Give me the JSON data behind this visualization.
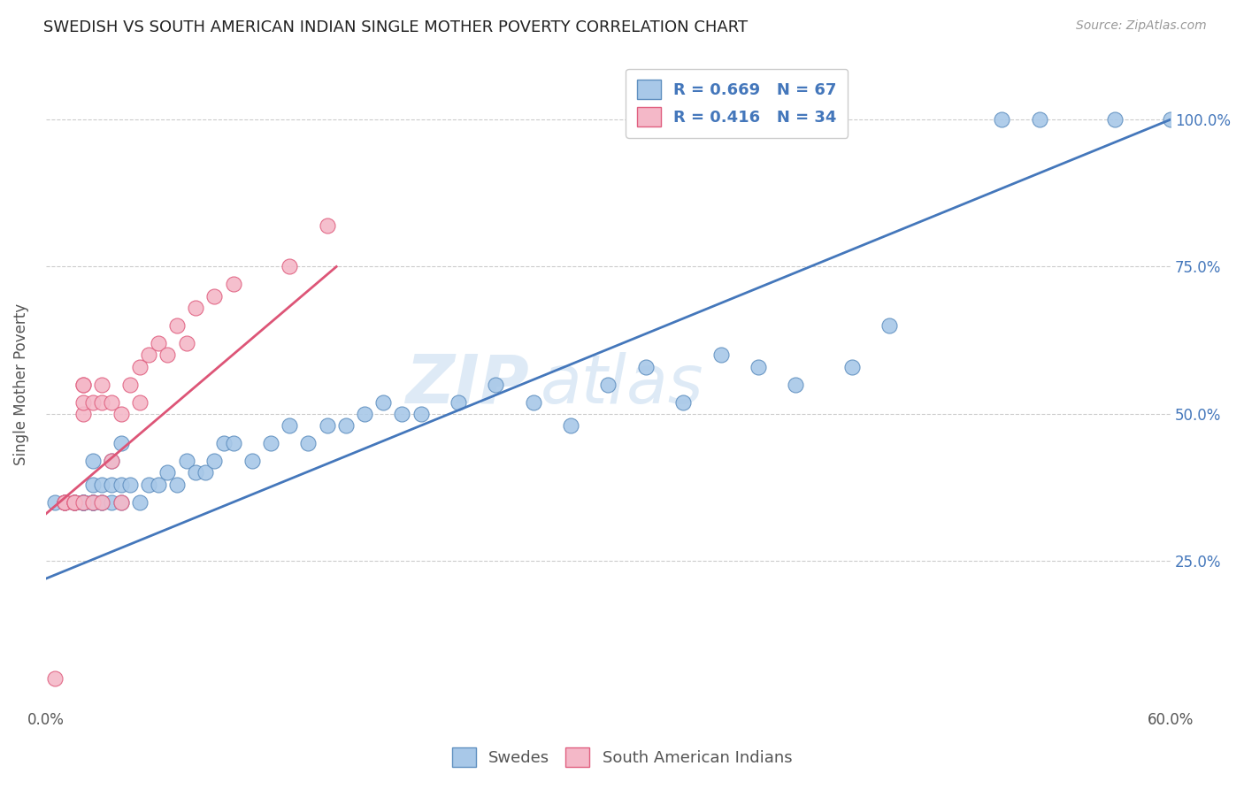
{
  "title": "SWEDISH VS SOUTH AMERICAN INDIAN SINGLE MOTHER POVERTY CORRELATION CHART",
  "source": "Source: ZipAtlas.com",
  "xlabel_ticks": [
    "0.0%",
    "",
    "",
    "",
    "",
    "",
    "60.0%"
  ],
  "ylabel_ticks": [
    "25.0%",
    "50.0%",
    "75.0%",
    "100.0%"
  ],
  "ylabel": "Single Mother Poverty",
  "xlim": [
    0.0,
    0.6
  ],
  "ylim": [
    0.0,
    1.1
  ],
  "ytick_vals": [
    0.25,
    0.5,
    0.75,
    1.0
  ],
  "blue_R": 0.669,
  "blue_N": 67,
  "pink_R": 0.416,
  "pink_N": 34,
  "blue_color": "#a8c8e8",
  "pink_color": "#f4b8c8",
  "blue_edge_color": "#6090c0",
  "pink_edge_color": "#e06080",
  "blue_line_color": "#4477bb",
  "pink_line_color": "#dd5577",
  "legend_text_color": "#4477bb",
  "watermark_zip": "ZIP",
  "watermark_atlas": "atlas",
  "blue_scatter_x": [
    0.005,
    0.01,
    0.01,
    0.015,
    0.015,
    0.015,
    0.02,
    0.02,
    0.02,
    0.02,
    0.02,
    0.02,
    0.02,
    0.025,
    0.025,
    0.025,
    0.025,
    0.025,
    0.025,
    0.025,
    0.03,
    0.03,
    0.03,
    0.035,
    0.035,
    0.035,
    0.04,
    0.04,
    0.04,
    0.045,
    0.05,
    0.055,
    0.06,
    0.065,
    0.07,
    0.075,
    0.08,
    0.085,
    0.09,
    0.095,
    0.1,
    0.11,
    0.12,
    0.13,
    0.14,
    0.15,
    0.16,
    0.17,
    0.18,
    0.19,
    0.2,
    0.22,
    0.24,
    0.26,
    0.28,
    0.3,
    0.32,
    0.34,
    0.36,
    0.38,
    0.4,
    0.43,
    0.45,
    0.51,
    0.53,
    0.57,
    0.6
  ],
  "blue_scatter_y": [
    0.35,
    0.35,
    0.35,
    0.35,
    0.35,
    0.35,
    0.35,
    0.35,
    0.35,
    0.35,
    0.35,
    0.35,
    0.35,
    0.35,
    0.35,
    0.35,
    0.35,
    0.35,
    0.38,
    0.42,
    0.35,
    0.35,
    0.38,
    0.35,
    0.38,
    0.42,
    0.35,
    0.38,
    0.45,
    0.38,
    0.35,
    0.38,
    0.38,
    0.4,
    0.38,
    0.42,
    0.4,
    0.4,
    0.42,
    0.45,
    0.45,
    0.42,
    0.45,
    0.48,
    0.45,
    0.48,
    0.48,
    0.5,
    0.52,
    0.5,
    0.5,
    0.52,
    0.55,
    0.52,
    0.48,
    0.55,
    0.58,
    0.52,
    0.6,
    0.58,
    0.55,
    0.58,
    0.65,
    1.0,
    1.0,
    1.0,
    1.0
  ],
  "pink_scatter_x": [
    0.005,
    0.01,
    0.01,
    0.01,
    0.015,
    0.015,
    0.015,
    0.02,
    0.02,
    0.02,
    0.02,
    0.02,
    0.025,
    0.025,
    0.03,
    0.03,
    0.03,
    0.035,
    0.035,
    0.04,
    0.04,
    0.045,
    0.05,
    0.05,
    0.055,
    0.06,
    0.065,
    0.07,
    0.075,
    0.08,
    0.09,
    0.1,
    0.13,
    0.15
  ],
  "pink_scatter_y": [
    0.05,
    0.35,
    0.35,
    0.35,
    0.35,
    0.35,
    0.35,
    0.35,
    0.5,
    0.52,
    0.55,
    0.55,
    0.35,
    0.52,
    0.35,
    0.52,
    0.55,
    0.42,
    0.52,
    0.35,
    0.5,
    0.55,
    0.52,
    0.58,
    0.6,
    0.62,
    0.6,
    0.65,
    0.62,
    0.68,
    0.7,
    0.72,
    0.75,
    0.82
  ],
  "blue_line_x": [
    0.0,
    0.6
  ],
  "blue_line_y": [
    0.22,
    1.0
  ],
  "pink_line_x": [
    0.0,
    0.155
  ],
  "pink_line_y": [
    0.33,
    0.75
  ],
  "figsize": [
    14.06,
    8.92
  ],
  "dpi": 100
}
